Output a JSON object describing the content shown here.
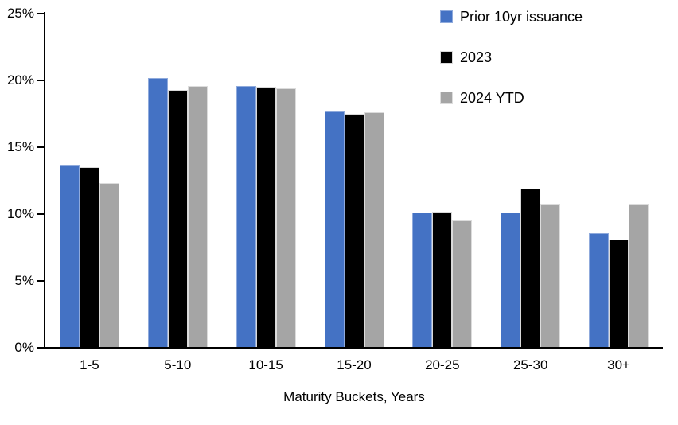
{
  "chart_data": {
    "type": "bar",
    "title": "",
    "xlabel": "Maturity Buckets, Years",
    "ylabel": "",
    "ylim": [
      0,
      25
    ],
    "ytick_step": 5,
    "ytick_labels": [
      "0%",
      "5%",
      "10%",
      "15%",
      "20%",
      "25%"
    ],
    "grid": false,
    "legend_position": "top-right",
    "axis_color": "#000000",
    "categories": [
      "1-5",
      "5-10",
      "10-15",
      "15-20",
      "20-25",
      "25-30",
      "30+"
    ],
    "series": [
      {
        "name": "Prior 10yr issuance",
        "color": "#4472C4",
        "border_color": "#8FAADC",
        "values": [
          13.7,
          20.2,
          19.6,
          17.7,
          10.1,
          10.1,
          8.6
        ]
      },
      {
        "name": "2023",
        "color": "#000000",
        "border_color": "#D9D9D9",
        "values": [
          13.5,
          19.3,
          19.5,
          17.5,
          10.2,
          11.9,
          8.1
        ]
      },
      {
        "name": "2024 YTD",
        "color": "#A5A5A5",
        "border_color": "#DCDCDC",
        "values": [
          12.3,
          19.6,
          19.4,
          17.6,
          9.5,
          10.8,
          10.8
        ]
      }
    ]
  }
}
